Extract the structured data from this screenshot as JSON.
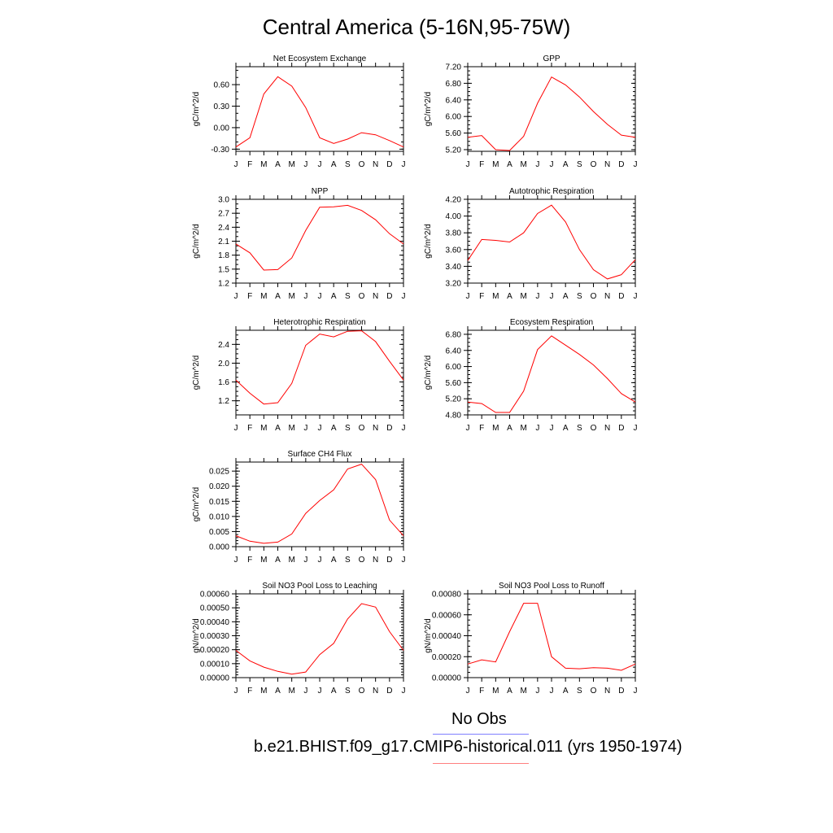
{
  "title": "Central America (5-16N,95-75W)",
  "months": [
    "J",
    "F",
    "M",
    "A",
    "M",
    "J",
    "J",
    "A",
    "S",
    "O",
    "N",
    "D",
    "J"
  ],
  "legend": {
    "obs_label": "No Obs",
    "obs_color": "#7f7fff",
    "model_label": "b.e21.BHIST.f09_g17.CMIP6-historical.011 (yrs 1950-1974)",
    "model_color": "#ff7f7f"
  },
  "line_color": "#ff0000",
  "chart_data": [
    {
      "type": "line",
      "title": "Net Ecosystem Exchange",
      "ylabel": "gC/m^2/d",
      "ylim": [
        -0.33,
        0.85
      ],
      "yticks": [
        "0.60",
        "0.30",
        "0.00",
        "-0.30"
      ],
      "ytick_values": [
        0.6,
        0.3,
        0.0,
        -0.3
      ],
      "yminor": 0.1,
      "values": [
        -0.27,
        -0.14,
        0.47,
        0.71,
        0.58,
        0.28,
        -0.14,
        -0.22,
        -0.16,
        -0.07,
        -0.1,
        -0.18,
        -0.27
      ]
    },
    {
      "type": "line",
      "title": "GPP",
      "ylabel": "gC/m^2/d",
      "ylim": [
        5.16,
        7.2
      ],
      "yticks": [
        "7.20",
        "6.80",
        "6.40",
        "6.00",
        "5.60",
        "5.20"
      ],
      "ytick_values": [
        7.2,
        6.8,
        6.4,
        6.0,
        5.6,
        5.2
      ],
      "yminor": 0.1,
      "values": [
        5.5,
        5.54,
        5.2,
        5.18,
        5.52,
        6.32,
        6.95,
        6.76,
        6.47,
        6.12,
        5.81,
        5.55,
        5.5
      ]
    },
    {
      "type": "line",
      "title": "NPP",
      "ylabel": "gC/m^2/d",
      "ylim": [
        1.2,
        3.0
      ],
      "yticks": [
        "3.0",
        "2.7",
        "2.4",
        "2.1",
        "1.8",
        "1.5",
        "1.2"
      ],
      "ytick_values": [
        3.0,
        2.7,
        2.4,
        2.1,
        1.8,
        1.5,
        1.2
      ],
      "yminor": 0.1,
      "values": [
        2.04,
        1.85,
        1.48,
        1.49,
        1.74,
        2.33,
        2.83,
        2.84,
        2.87,
        2.76,
        2.56,
        2.26,
        2.04
      ]
    },
    {
      "type": "line",
      "title": "Autotrophic Respiration",
      "ylabel": "gC/m^2/d",
      "ylim": [
        3.2,
        4.2
      ],
      "yticks": [
        "4.20",
        "4.00",
        "3.80",
        "3.60",
        "3.40",
        "3.20"
      ],
      "ytick_values": [
        4.2,
        4.0,
        3.8,
        3.6,
        3.4,
        3.2
      ],
      "yminor": 0.05,
      "values": [
        3.47,
        3.72,
        3.71,
        3.69,
        3.8,
        4.03,
        4.13,
        3.93,
        3.6,
        3.36,
        3.25,
        3.3,
        3.48
      ]
    },
    {
      "type": "line",
      "title": "Heterotrophic Respiration",
      "ylabel": "gC/m^2/d",
      "ylim": [
        0.9,
        2.7
      ],
      "yticks": [
        "2.4",
        "2.0",
        "1.6",
        "1.2"
      ],
      "ytick_values": [
        2.4,
        2.0,
        1.6,
        1.2
      ],
      "yminor": 0.1,
      "values": [
        1.64,
        1.36,
        1.13,
        1.16,
        1.57,
        2.38,
        2.62,
        2.56,
        2.68,
        2.69,
        2.46,
        2.04,
        1.64
      ]
    },
    {
      "type": "line",
      "title": "Ecosystem Respiration",
      "ylabel": "gC/m^2/d",
      "ylim": [
        4.8,
        6.9
      ],
      "yticks": [
        "6.80",
        "6.40",
        "6.00",
        "5.60",
        "5.20",
        "4.80"
      ],
      "ytick_values": [
        6.8,
        6.4,
        6.0,
        5.6,
        5.2,
        4.8
      ],
      "yminor": 0.1,
      "values": [
        5.12,
        5.08,
        4.86,
        4.86,
        5.39,
        6.42,
        6.76,
        6.53,
        6.3,
        6.04,
        5.7,
        5.33,
        5.12
      ]
    },
    {
      "type": "line",
      "title": "Surface CH4 Flux",
      "ylabel": "gC/m^2/d",
      "ylim": [
        0.0,
        0.028
      ],
      "yticks": [
        "0.025",
        "0.020",
        "0.015",
        "0.010",
        "0.005",
        "0.000"
      ],
      "ytick_values": [
        0.025,
        0.02,
        0.015,
        0.01,
        0.005,
        0.0
      ],
      "yminor": 0.001,
      "values": [
        0.0036,
        0.0018,
        0.0011,
        0.0015,
        0.0042,
        0.011,
        0.0153,
        0.0188,
        0.0257,
        0.0273,
        0.0222,
        0.0088,
        0.0036
      ]
    },
    {
      "type": "line",
      "title": "Soil NO3 Pool Loss to Leaching",
      "ylabel": "gN/m^2/d",
      "ylim": [
        0.0,
        0.0006
      ],
      "yticks": [
        "0.00060",
        "0.00050",
        "0.00040",
        "0.00030",
        "0.00020",
        "0.00010",
        "0.00000"
      ],
      "ytick_values": [
        0.0006,
        0.0005,
        0.0004,
        0.0003,
        0.0002,
        0.0001,
        0.0
      ],
      "yminor": 2e-05,
      "values": [
        0.000195,
        0.00012,
        7.5e-05,
        4.5e-05,
        2.5e-05,
        4e-05,
        0.000165,
        0.000245,
        0.00042,
        0.00053,
        0.000505,
        0.00033,
        0.000195
      ]
    },
    {
      "type": "line",
      "title": "Soil NO3 Pool Loss to Runoff",
      "ylabel": "gN/m^2/d",
      "ylim": [
        0.0,
        0.0008
      ],
      "yticks": [
        "0.00080",
        "0.00060",
        "0.00040",
        "0.00020",
        "0.00000"
      ],
      "ytick_values": [
        0.0008,
        0.0006,
        0.0004,
        0.0002,
        0.0
      ],
      "yminor": 5e-05,
      "values": [
        0.00013,
        0.00017,
        0.00015,
        0.00044,
        0.00071,
        0.00071,
        0.0002,
        9e-05,
        8.5e-05,
        9.5e-05,
        9e-05,
        7e-05,
        0.00013
      ]
    }
  ]
}
